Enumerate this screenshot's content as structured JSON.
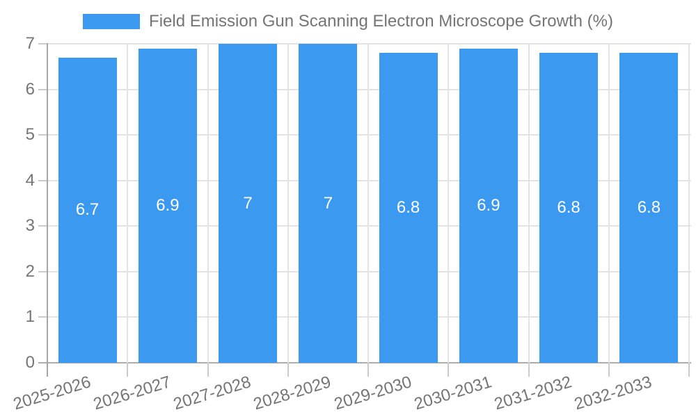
{
  "chart_data": {
    "type": "bar",
    "title": "Field Emission Gun Scanning Electron Microscope Growth (%)",
    "legend": {
      "position": "top",
      "entries": [
        "Field Emission Gun Scanning Electron Microscope Growth (%)"
      ]
    },
    "categories": [
      "2025-2026",
      "2026-2027",
      "2027-2028",
      "2028-2029",
      "2029-2030",
      "2030-2031",
      "2031-2032",
      "2032-2033"
    ],
    "series": [
      {
        "name": "Field Emission Gun Scanning Electron Microscope Growth (%)",
        "values": [
          6.7,
          6.9,
          7,
          7,
          6.8,
          6.9,
          6.8,
          6.8
        ]
      }
    ],
    "value_labels": [
      "6.7",
      "6.9",
      "7",
      "7",
      "6.8",
      "6.9",
      "6.8",
      "6.8"
    ],
    "xlabel": "",
    "ylabel": "",
    "ylim": [
      0,
      7
    ],
    "yticks": [
      0,
      1,
      2,
      3,
      4,
      5,
      6,
      7
    ],
    "grid": true,
    "colors": {
      "bar": "#3B99F0",
      "value_label_text": "#FFFFFF",
      "axis_text": "#757575",
      "gridline": "#E3E3E3",
      "tick": "#CBCBCB",
      "baseline": "#ADADAD",
      "axisline": "#A6A6A6"
    }
  }
}
